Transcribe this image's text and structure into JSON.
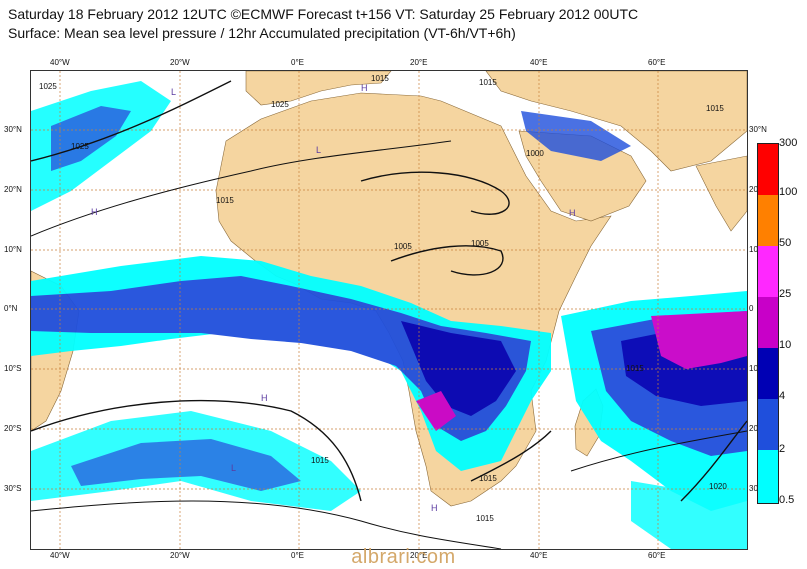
{
  "header": {
    "line1": "Saturday 18 February 2012 12UTC ©ECMWF Forecast t+156 VT: Saturday 25 February 2012 00UTC",
    "line2": "Surface: Mean sea level pressure / 12hr Accumulated precipitation (VT-6h/VT+6h)"
  },
  "map": {
    "longitude_labels": [
      "40°W",
      "20°W",
      "0°E",
      "20°E",
      "40°E",
      "60°E"
    ],
    "latitude_labels": [
      "30°N",
      "20°N",
      "10°N",
      "0°N",
      "10°S",
      "20°S",
      "30°S"
    ],
    "latitude_labels_right": [
      "30°N",
      "20",
      "10",
      "0",
      "10",
      "20",
      "30"
    ],
    "isobar_labels": [
      "1025",
      "1025",
      "1025",
      "1015",
      "1015",
      "1015",
      "1005",
      "1005",
      "1000",
      "1015",
      "1015",
      "1015",
      "1015",
      "1015",
      "1020"
    ],
    "pressure_center_marks": [
      "H",
      "L"
    ],
    "colors": {
      "ocean": "#ffffff",
      "land": "#f5d5a0",
      "grid": "#c8803c",
      "isobar": "#111111"
    }
  },
  "colorbar": {
    "levels": [
      "0.5",
      "2",
      "4",
      "10",
      "25",
      "50",
      "100",
      "300"
    ],
    "colors": [
      "#00ffff",
      "#14c8e6",
      "#1f4fdc",
      "#0000b4",
      "#c800c8",
      "#ff28ff",
      "#ff8000",
      "#ff0000"
    ]
  },
  "watermark": "albrari.com"
}
